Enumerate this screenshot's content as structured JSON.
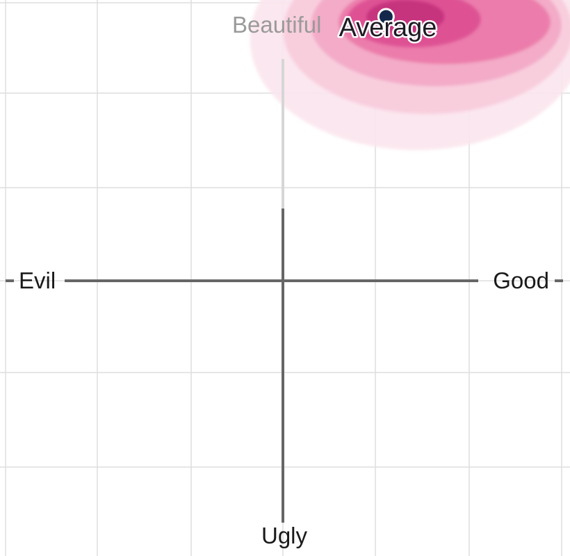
{
  "chart_data": {
    "type": "heatmap",
    "axes": {
      "x_left_label": "Evil",
      "x_right_label": "Good",
      "y_top_label": "Beautiful",
      "y_bottom_label": "Ugly"
    },
    "xlim": [
      -1,
      1
    ],
    "ylim": [
      -1,
      1
    ],
    "grid": true,
    "average_point": {
      "label": "Average",
      "x": 0.37,
      "y": 0.95
    },
    "density_levels": [
      {
        "level": 1,
        "color": "#fbe6ee",
        "cx": 0.48,
        "cy": 0.87,
        "rx": 0.6,
        "ry": 0.4
      },
      {
        "level": 2,
        "color": "#f8ccdc",
        "cx": 0.52,
        "cy": 0.9,
        "rx": 0.52,
        "ry": 0.3
      },
      {
        "level": 3,
        "color": "#f3a9c6",
        "cx": 0.55,
        "cy": 0.92,
        "rx": 0.45,
        "ry": 0.22
      },
      {
        "level": 4,
        "color": "#eb79a9",
        "cx": 0.58,
        "cy": 0.93,
        "rx": 0.38,
        "ry": 0.15
      },
      {
        "level": 5,
        "color": "#dd4f93",
        "cx": 0.47,
        "cy": 0.94,
        "rx": 0.24,
        "ry": 0.1
      },
      {
        "level": 6,
        "color": "#c4307d",
        "cx": 0.44,
        "cy": 0.95,
        "rx": 0.14,
        "ry": 0.06
      }
    ],
    "point_color": "#14284b"
  }
}
